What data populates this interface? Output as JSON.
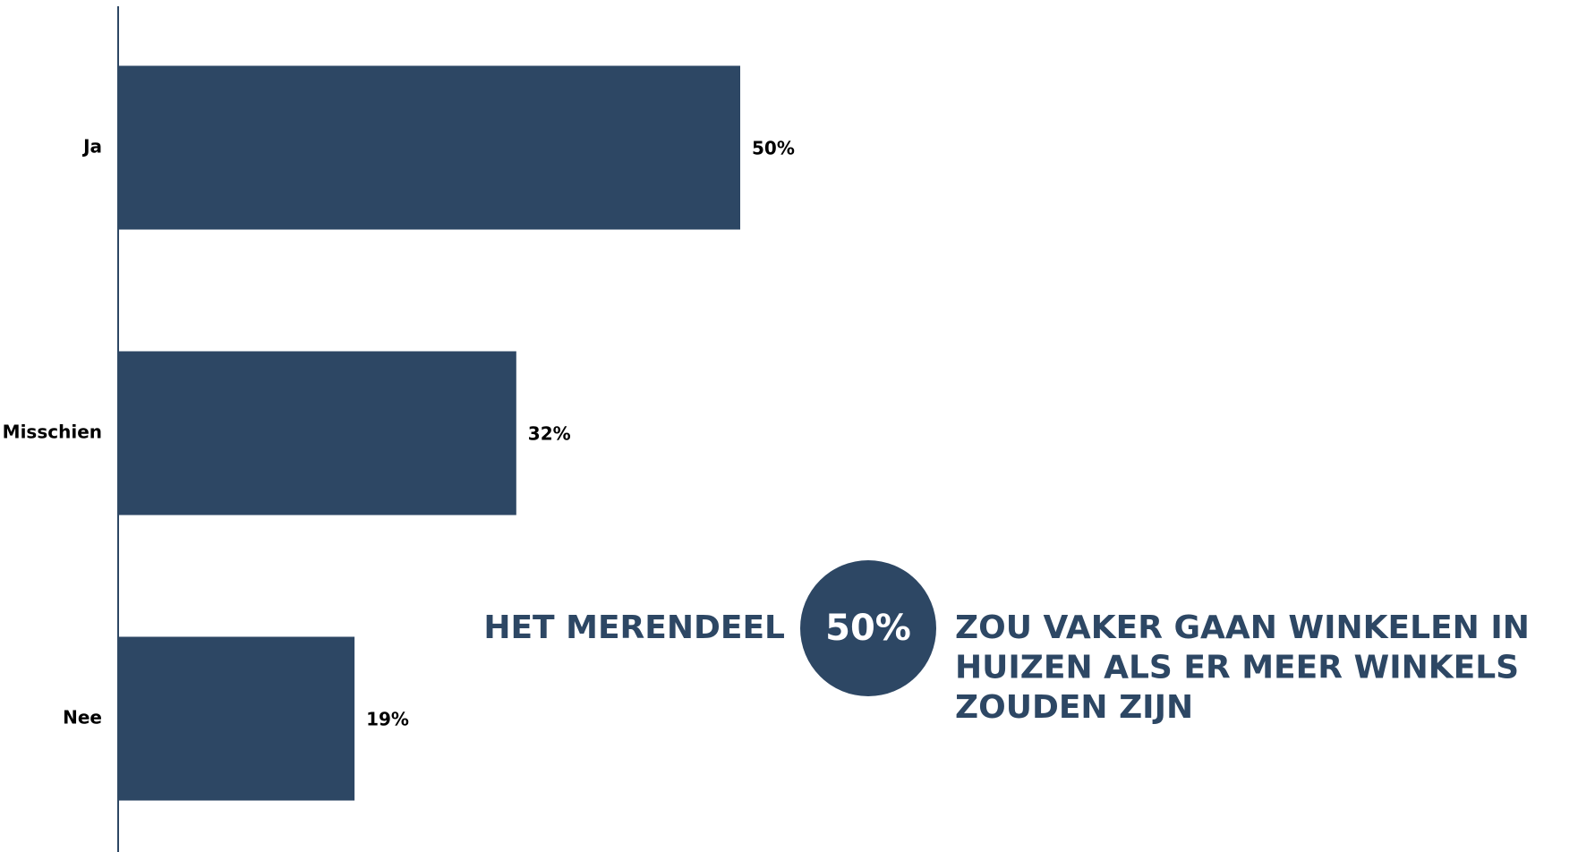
{
  "chart_data": {
    "type": "bar",
    "orientation": "horizontal",
    "color": "#2d4764",
    "categories": [
      "Ja",
      "Misschien",
      "Nee"
    ],
    "values": [
      50,
      32,
      19
    ],
    "value_labels": [
      "50%",
      "32%",
      "19%"
    ],
    "xlim": [
      0,
      100
    ]
  },
  "callout": {
    "lead": "HET MERENDEEL",
    "highlight": "50%",
    "text_lines": [
      "ZOU VAKER GAAN WINKELEN IN",
      "HUIZEN ALS ER MEER WINKELS",
      "ZOUDEN ZIJN"
    ]
  }
}
